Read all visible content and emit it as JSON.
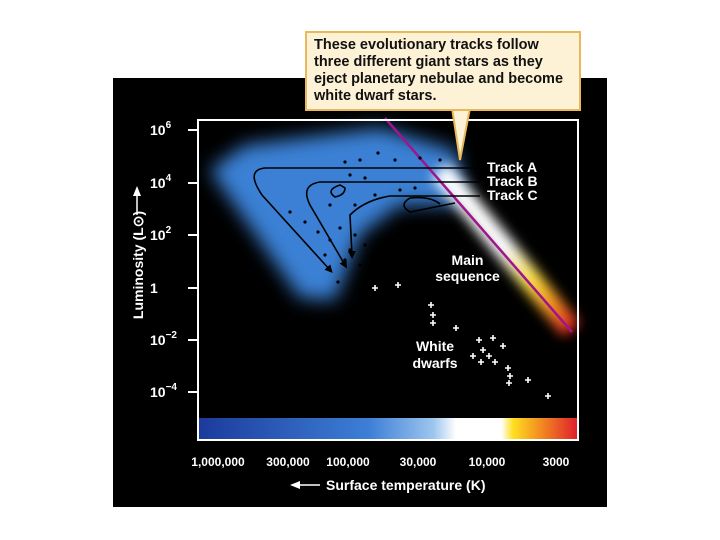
{
  "callout": "These evolutionary tracks follow three different giant stars as they eject planetary nebulae and become white dwarf stars.",
  "tracks": [
    "Track A",
    "Track B",
    "Track C"
  ],
  "regions": {
    "main_sequence": "Main sequence",
    "white_dwarfs": "White dwarfs"
  },
  "y_axis": {
    "title": "Luminosity (L⊙)",
    "ticks": [
      {
        "base": "10",
        "exponent": "6"
      },
      {
        "base": "10",
        "exponent": "4"
      },
      {
        "base": "10",
        "exponent": "2"
      },
      {
        "base": "1",
        "exponent": ""
      },
      {
        "base": "10",
        "exponent": "−2"
      },
      {
        "base": "10",
        "exponent": "−4"
      }
    ]
  },
  "x_axis": {
    "title": "Surface temperature (K)",
    "ticks": [
      "1,000,000",
      "300,000",
      "100,000",
      "30,000",
      "10,000",
      "3000"
    ]
  }
}
